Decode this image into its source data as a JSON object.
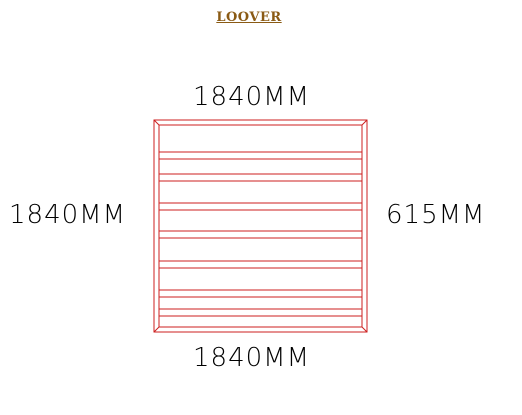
{
  "title": "LOOVER",
  "dimensions": {
    "top": "1840MM",
    "bottom": "1840MM",
    "left": "1840MM",
    "right": "615MM"
  },
  "louver": {
    "color": "#cc1f1f",
    "slat_count": 14
  }
}
